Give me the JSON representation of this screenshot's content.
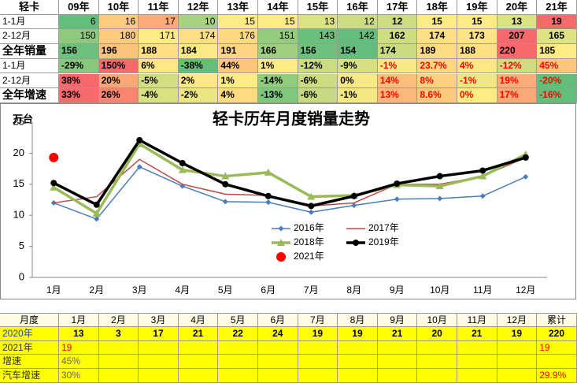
{
  "top_table": {
    "header": [
      "轻卡",
      "09年",
      "10年",
      "11年",
      "12年",
      "13年",
      "14年",
      "15年",
      "16年",
      "17年",
      "18年",
      "19年",
      "20年",
      "21年"
    ],
    "rows": [
      {
        "label": "1-1月",
        "cells": [
          "6",
          "16",
          "17",
          "10",
          "15",
          "15",
          "13",
          "12",
          "12",
          "15",
          "15",
          "13",
          "19"
        ]
      },
      {
        "label": "2-12月",
        "cells": [
          "150",
          "180",
          "171",
          "174",
          "176",
          "151",
          "143",
          "142",
          "162",
          "174",
          "173",
          "207",
          "165"
        ]
      },
      {
        "label": "全年销量",
        "cells": [
          "156",
          "196",
          "188",
          "184",
          "191",
          "166",
          "156",
          "154",
          "174",
          "189",
          "188",
          "220",
          "185"
        ]
      },
      {
        "label": "1-1月",
        "cells": [
          "-29%",
          "150%",
          "6%",
          "-38%",
          "44%",
          "1%",
          "-12%",
          "-9%",
          "-1%",
          "23.7%",
          "4%",
          "-12%",
          "45%"
        ],
        "red_from": 8
      },
      {
        "label": "2-12月",
        "cells": [
          "38%",
          "20%",
          "-5%",
          "2%",
          "1%",
          "-14%",
          "-6%",
          "0%",
          "14%",
          "8%",
          "-1%",
          "19%",
          "-20%"
        ],
        "red_from": 8
      },
      {
        "label": "全年增速",
        "cells": [
          "33%",
          "26%",
          "-4%",
          "-2%",
          "4%",
          "-13%",
          "-6%",
          "-1%",
          "13%",
          "8.6%",
          "0%",
          "17%",
          "-16%"
        ],
        "red_from": 8
      }
    ]
  },
  "chart_data": {
    "type": "line",
    "title": "轻卡历年月度销量走势",
    "y_label": "万台",
    "categories": [
      "1月",
      "2月",
      "3月",
      "4月",
      "5月",
      "6月",
      "7月",
      "8月",
      "9月",
      "10月",
      "11月",
      "12月"
    ],
    "ylim": [
      0,
      25
    ],
    "yticks": [
      0,
      5,
      10,
      15,
      20,
      25
    ],
    "series": [
      {
        "name": "2016年",
        "color": "#4a7ebb",
        "marker": "diamond",
        "width": 1.5,
        "values": [
          12,
          9.4,
          17.8,
          14.7,
          12.2,
          12.1,
          10.5,
          11.6,
          12.6,
          12.7,
          13.1,
          16.2
        ]
      },
      {
        "name": "2017年",
        "color": "#be4b48",
        "marker": "none",
        "width": 1.5,
        "values": [
          12,
          13,
          19,
          15,
          13.4,
          13.2,
          11.5,
          12,
          15,
          15,
          16.3,
          19.3
        ]
      },
      {
        "name": "2018年",
        "color": "#9bbb59",
        "marker": "triangle",
        "width": 3.5,
        "values": [
          14.5,
          10.3,
          21.5,
          17.3,
          16.3,
          16.9,
          13,
          13.2,
          14.9,
          14.7,
          16.3,
          19.8
        ]
      },
      {
        "name": "2019年",
        "color": "#000000",
        "marker": "circle",
        "width": 3.5,
        "values": [
          15.2,
          11.7,
          22.1,
          18.4,
          15,
          13.1,
          11.5,
          13.1,
          15.1,
          16.3,
          17.2,
          19.3
        ]
      },
      {
        "name": "2021年",
        "color": "#ff0000",
        "marker": "bigdot",
        "width": 0,
        "values": [
          19.3,
          null,
          null,
          null,
          null,
          null,
          null,
          null,
          null,
          null,
          null,
          null
        ]
      }
    ]
  },
  "bottom_table": {
    "header": [
      "月度",
      "1月",
      "2月",
      "3月",
      "4月",
      "5月",
      "6月",
      "7月",
      "8月",
      "9月",
      "10月",
      "11月",
      "12月",
      "累计"
    ],
    "rows": [
      {
        "label": "2020年",
        "cells": [
          "13",
          "3",
          "17",
          "21",
          "22",
          "24",
          "19",
          "19",
          "21",
          "20",
          "21",
          "19",
          "220"
        ]
      },
      {
        "label": "2021年",
        "cells": [
          "19",
          null,
          null,
          null,
          null,
          null,
          null,
          null,
          null,
          null,
          null,
          null,
          "19"
        ]
      },
      {
        "label": "增速",
        "cells": [
          "45%",
          null,
          null,
          null,
          null,
          null,
          null,
          null,
          null,
          null,
          null,
          null,
          null
        ]
      },
      {
        "label": "汽车增速",
        "cells": [
          "30%",
          null,
          null,
          null,
          null,
          null,
          null,
          null,
          null,
          null,
          null,
          null,
          "29.9%"
        ]
      }
    ]
  }
}
